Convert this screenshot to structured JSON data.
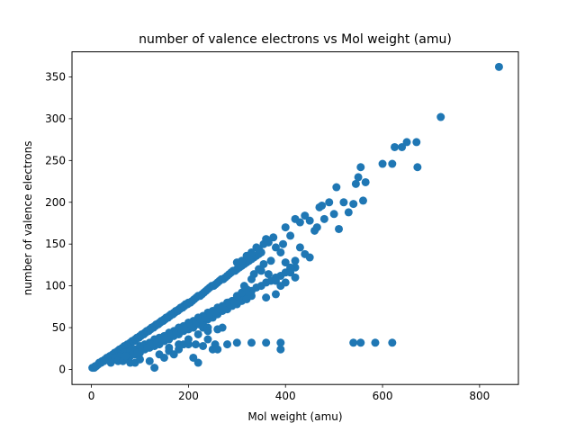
{
  "chart_data": {
    "type": "scatter",
    "title": "number of valence electrons vs Mol weight (amu)",
    "xlabel": "Mol weight (amu)",
    "ylabel": "number of valence electrons",
    "xlim": [
      -40,
      880
    ],
    "ylim": [
      -18,
      380
    ],
    "xticks": [
      0,
      200,
      400,
      600,
      800
    ],
    "yticks": [
      0,
      50,
      100,
      150,
      200,
      250,
      300,
      350
    ],
    "grid": false,
    "legend": "none",
    "marker_color": "#1f77b4",
    "points": [
      [
        2,
        2
      ],
      [
        4,
        2
      ],
      [
        6,
        2
      ],
      [
        8,
        4
      ],
      [
        10,
        4
      ],
      [
        14,
        6
      ],
      [
        16,
        8
      ],
      [
        18,
        8
      ],
      [
        20,
        8
      ],
      [
        22,
        10
      ],
      [
        26,
        10
      ],
      [
        28,
        12
      ],
      [
        30,
        12
      ],
      [
        32,
        14
      ],
      [
        34,
        12
      ],
      [
        36,
        14
      ],
      [
        38,
        16
      ],
      [
        40,
        16
      ],
      [
        42,
        16
      ],
      [
        44,
        18
      ],
      [
        46,
        18
      ],
      [
        48,
        20
      ],
      [
        50,
        20
      ],
      [
        52,
        20
      ],
      [
        54,
        22
      ],
      [
        56,
        22
      ],
      [
        58,
        24
      ],
      [
        60,
        24
      ],
      [
        62,
        24
      ],
      [
        64,
        26
      ],
      [
        66,
        26
      ],
      [
        68,
        28
      ],
      [
        70,
        28
      ],
      [
        72,
        28
      ],
      [
        74,
        30
      ],
      [
        76,
        30
      ],
      [
        78,
        30
      ],
      [
        80,
        32
      ],
      [
        82,
        32
      ],
      [
        84,
        34
      ],
      [
        86,
        34
      ],
      [
        88,
        34
      ],
      [
        90,
        36
      ],
      [
        92,
        36
      ],
      [
        94,
        38
      ],
      [
        96,
        38
      ],
      [
        98,
        38
      ],
      [
        100,
        40
      ],
      [
        102,
        40
      ],
      [
        104,
        42
      ],
      [
        106,
        42
      ],
      [
        108,
        42
      ],
      [
        110,
        44
      ],
      [
        112,
        44
      ],
      [
        114,
        46
      ],
      [
        116,
        46
      ],
      [
        118,
        46
      ],
      [
        120,
        48
      ],
      [
        122,
        48
      ],
      [
        124,
        50
      ],
      [
        126,
        50
      ],
      [
        128,
        50
      ],
      [
        130,
        52
      ],
      [
        132,
        52
      ],
      [
        134,
        54
      ],
      [
        136,
        54
      ],
      [
        138,
        54
      ],
      [
        140,
        56
      ],
      [
        142,
        56
      ],
      [
        144,
        58
      ],
      [
        146,
        58
      ],
      [
        148,
        58
      ],
      [
        150,
        60
      ],
      [
        152,
        60
      ],
      [
        154,
        62
      ],
      [
        156,
        62
      ],
      [
        158,
        62
      ],
      [
        160,
        64
      ],
      [
        162,
        64
      ],
      [
        164,
        66
      ],
      [
        166,
        66
      ],
      [
        168,
        66
      ],
      [
        170,
        68
      ],
      [
        172,
        68
      ],
      [
        174,
        70
      ],
      [
        176,
        70
      ],
      [
        178,
        70
      ],
      [
        180,
        72
      ],
      [
        182,
        72
      ],
      [
        184,
        74
      ],
      [
        186,
        74
      ],
      [
        188,
        74
      ],
      [
        190,
        76
      ],
      [
        192,
        76
      ],
      [
        194,
        78
      ],
      [
        196,
        78
      ],
      [
        198,
        78
      ],
      [
        200,
        80
      ],
      [
        204,
        80
      ],
      [
        208,
        82
      ],
      [
        212,
        84
      ],
      [
        216,
        86
      ],
      [
        220,
        88
      ],
      [
        224,
        88
      ],
      [
        228,
        90
      ],
      [
        232,
        92
      ],
      [
        236,
        94
      ],
      [
        240,
        96
      ],
      [
        244,
        98
      ],
      [
        248,
        100
      ],
      [
        252,
        100
      ],
      [
        256,
        102
      ],
      [
        260,
        104
      ],
      [
        264,
        106
      ],
      [
        268,
        108
      ],
      [
        272,
        108
      ],
      [
        276,
        110
      ],
      [
        280,
        112
      ],
      [
        284,
        114
      ],
      [
        288,
        116
      ],
      [
        292,
        118
      ],
      [
        296,
        118
      ],
      [
        300,
        120
      ],
      [
        305,
        122
      ],
      [
        310,
        124
      ],
      [
        315,
        126
      ],
      [
        320,
        128
      ],
      [
        325,
        130
      ],
      [
        330,
        132
      ],
      [
        335,
        134
      ],
      [
        340,
        136
      ],
      [
        345,
        138
      ],
      [
        350,
        140
      ],
      [
        50,
        14
      ],
      [
        60,
        16
      ],
      [
        70,
        20
      ],
      [
        80,
        22
      ],
      [
        90,
        24
      ],
      [
        100,
        28
      ],
      [
        110,
        30
      ],
      [
        120,
        32
      ],
      [
        130,
        36
      ],
      [
        140,
        38
      ],
      [
        150,
        40
      ],
      [
        160,
        44
      ],
      [
        170,
        46
      ],
      [
        180,
        50
      ],
      [
        190,
        52
      ],
      [
        200,
        56
      ],
      [
        210,
        58
      ],
      [
        220,
        62
      ],
      [
        230,
        64
      ],
      [
        240,
        68
      ],
      [
        250,
        70
      ],
      [
        260,
        74
      ],
      [
        270,
        76
      ],
      [
        280,
        80
      ],
      [
        290,
        82
      ],
      [
        300,
        86
      ],
      [
        310,
        88
      ],
      [
        320,
        92
      ],
      [
        330,
        94
      ],
      [
        340,
        98
      ],
      [
        350,
        100
      ],
      [
        360,
        104
      ],
      [
        370,
        106
      ],
      [
        380,
        110
      ],
      [
        390,
        112
      ],
      [
        400,
        116
      ],
      [
        410,
        120
      ],
      [
        420,
        122
      ],
      [
        70,
        12
      ],
      [
        80,
        16
      ],
      [
        90,
        18
      ],
      [
        100,
        20
      ],
      [
        110,
        24
      ],
      [
        120,
        26
      ],
      [
        130,
        28
      ],
      [
        140,
        30
      ],
      [
        150,
        34
      ],
      [
        160,
        36
      ],
      [
        170,
        40
      ],
      [
        180,
        42
      ],
      [
        190,
        46
      ],
      [
        200,
        48
      ],
      [
        210,
        50
      ],
      [
        220,
        54
      ],
      [
        230,
        56
      ],
      [
        240,
        60
      ],
      [
        250,
        62
      ],
      [
        260,
        66
      ],
      [
        270,
        70
      ],
      [
        280,
        72
      ],
      [
        290,
        76
      ],
      [
        300,
        78
      ],
      [
        310,
        82
      ],
      [
        320,
        84
      ],
      [
        330,
        88
      ],
      [
        40,
        8
      ],
      [
        55,
        10
      ],
      [
        65,
        10
      ],
      [
        75,
        14
      ],
      [
        85,
        18
      ],
      [
        95,
        20
      ],
      [
        105,
        24
      ],
      [
        115,
        26
      ],
      [
        125,
        30
      ],
      [
        135,
        32
      ],
      [
        145,
        36
      ],
      [
        155,
        38
      ],
      [
        165,
        42
      ],
      [
        175,
        44
      ],
      [
        185,
        48
      ],
      [
        195,
        50
      ],
      [
        205,
        54
      ],
      [
        215,
        56
      ],
      [
        225,
        60
      ],
      [
        235,
        62
      ],
      [
        245,
        66
      ],
      [
        255,
        68
      ],
      [
        265,
        72
      ],
      [
        275,
        74
      ],
      [
        285,
        78
      ],
      [
        295,
        80
      ],
      [
        300,
        128
      ],
      [
        310,
        130
      ],
      [
        320,
        136
      ],
      [
        330,
        140
      ],
      [
        340,
        146
      ],
      [
        345,
        144
      ],
      [
        355,
        150
      ],
      [
        360,
        156
      ],
      [
        365,
        152
      ],
      [
        375,
        158
      ],
      [
        380,
        146
      ],
      [
        390,
        140
      ],
      [
        395,
        150
      ],
      [
        400,
        170
      ],
      [
        410,
        160
      ],
      [
        420,
        180
      ],
      [
        430,
        176
      ],
      [
        440,
        184
      ],
      [
        450,
        178
      ],
      [
        460,
        166
      ],
      [
        465,
        170
      ],
      [
        470,
        194
      ],
      [
        475,
        196
      ],
      [
        480,
        180
      ],
      [
        490,
        200
      ],
      [
        500,
        186
      ],
      [
        505,
        218
      ],
      [
        510,
        168
      ],
      [
        520,
        200
      ],
      [
        530,
        188
      ],
      [
        540,
        198
      ],
      [
        545,
        222
      ],
      [
        550,
        230
      ],
      [
        555,
        242
      ],
      [
        560,
        202
      ],
      [
        565,
        224
      ],
      [
        600,
        246
      ],
      [
        620,
        246
      ],
      [
        625,
        266
      ],
      [
        640,
        266
      ],
      [
        650,
        272
      ],
      [
        670,
        272
      ],
      [
        672,
        242
      ],
      [
        720,
        302
      ],
      [
        840,
        362
      ],
      [
        300,
        88
      ],
      [
        310,
        92
      ],
      [
        315,
        100
      ],
      [
        320,
        96
      ],
      [
        330,
        108
      ],
      [
        335,
        114
      ],
      [
        345,
        120
      ],
      [
        350,
        118
      ],
      [
        355,
        126
      ],
      [
        360,
        86
      ],
      [
        365,
        114
      ],
      [
        370,
        130
      ],
      [
        380,
        106
      ],
      [
        390,
        100
      ],
      [
        400,
        128
      ],
      [
        410,
        122
      ],
      [
        420,
        110
      ],
      [
        380,
        90
      ],
      [
        400,
        104
      ],
      [
        410,
        116
      ],
      [
        420,
        130
      ],
      [
        430,
        146
      ],
      [
        440,
        138
      ],
      [
        450,
        134
      ],
      [
        130,
        2
      ],
      [
        150,
        14
      ],
      [
        160,
        22
      ],
      [
        170,
        18
      ],
      [
        180,
        24
      ],
      [
        190,
        30
      ],
      [
        200,
        30
      ],
      [
        210,
        14
      ],
      [
        215,
        30
      ],
      [
        220,
        8
      ],
      [
        230,
        28
      ],
      [
        230,
        50
      ],
      [
        240,
        50
      ],
      [
        250,
        24
      ],
      [
        255,
        30
      ],
      [
        260,
        24
      ],
      [
        270,
        50
      ],
      [
        280,
        30
      ],
      [
        300,
        32
      ],
      [
        330,
        32
      ],
      [
        360,
        32
      ],
      [
        390,
        32
      ],
      [
        390,
        24
      ],
      [
        540,
        32
      ],
      [
        555,
        32
      ],
      [
        585,
        32
      ],
      [
        620,
        32
      ],
      [
        80,
        8
      ],
      [
        90,
        8
      ],
      [
        70,
        16
      ],
      [
        100,
        12
      ],
      [
        120,
        10
      ],
      [
        140,
        18
      ],
      [
        160,
        26
      ],
      [
        180,
        30
      ],
      [
        200,
        36
      ],
      [
        220,
        42
      ],
      [
        240,
        36
      ],
      [
        260,
        48
      ],
      [
        240,
        46
      ]
    ]
  }
}
